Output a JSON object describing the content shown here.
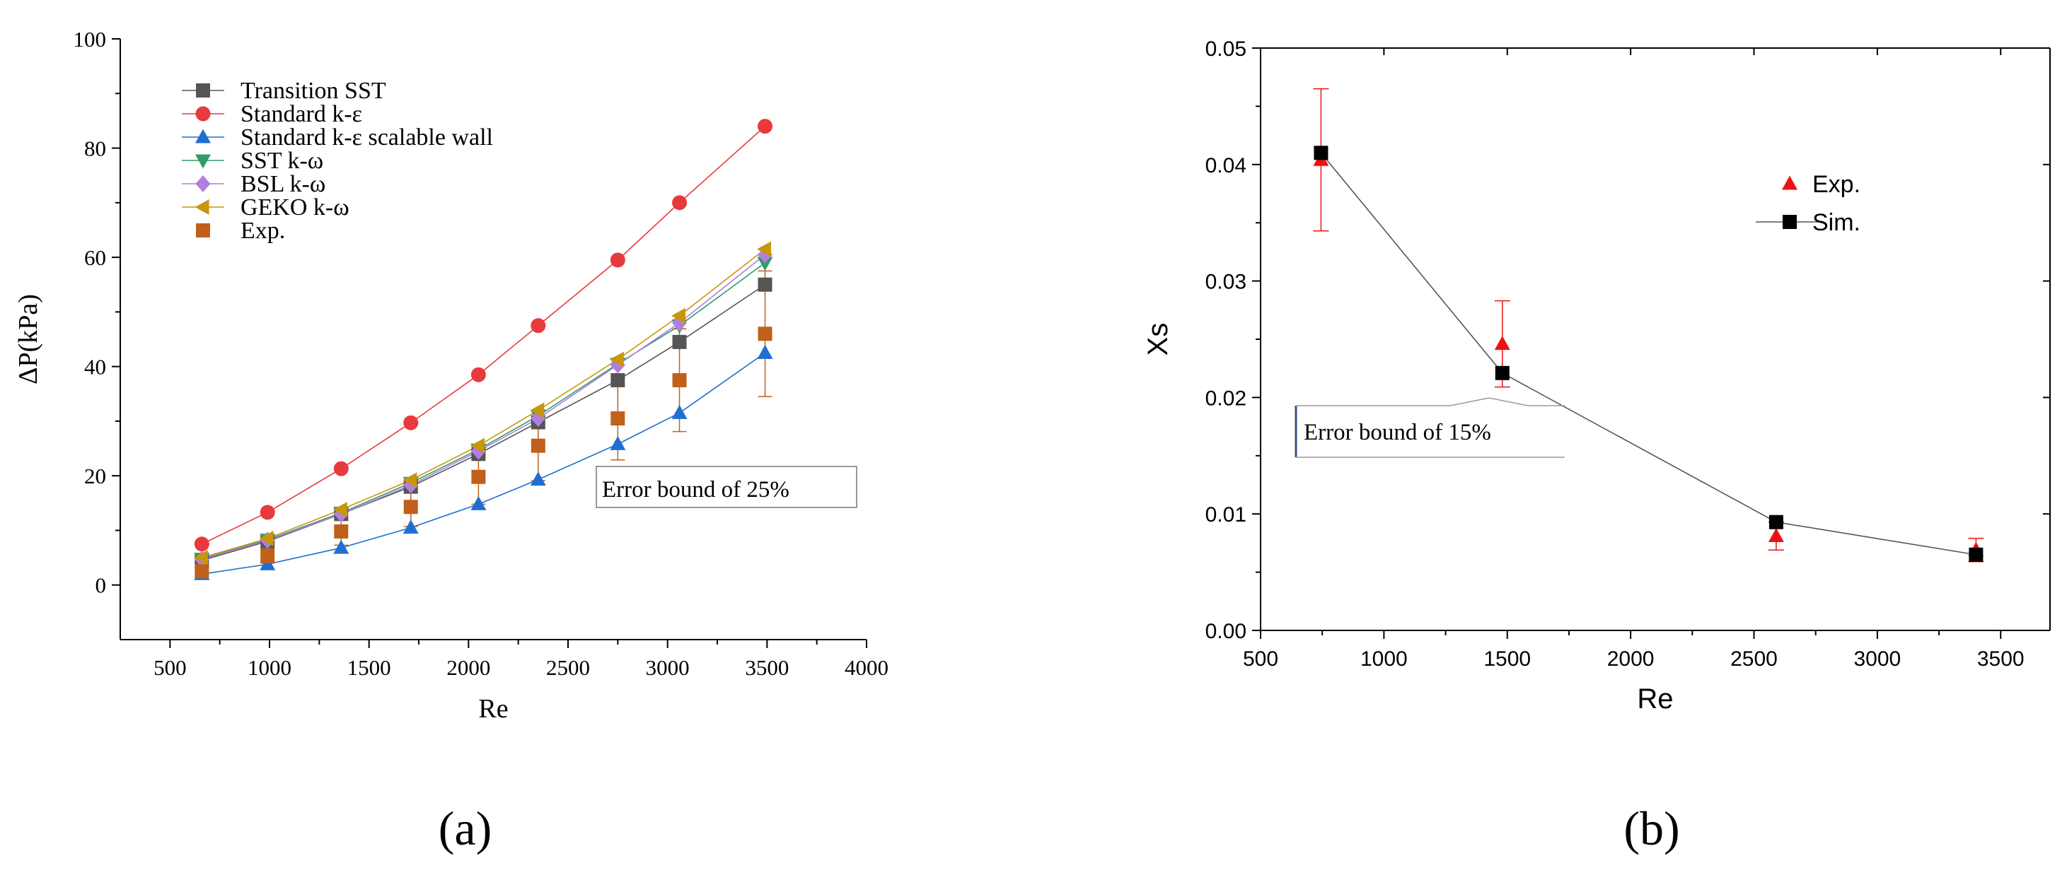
{
  "chart_data": [
    {
      "type": "line",
      "panel_label": "(a)",
      "xlabel": "Re",
      "ylabel": "ΔP(kPa)",
      "xlim": [
        250,
        4000
      ],
      "ylim": [
        -10,
        100
      ],
      "xticks": [
        500,
        1000,
        1500,
        2000,
        2500,
        3000,
        3500,
        4000
      ],
      "yticks": [
        0,
        20,
        40,
        60,
        80,
        100
      ],
      "legend_position": "top-left",
      "grid": false,
      "annotation": "Error bound of 25%",
      "x": [
        660,
        990,
        1360,
        1710,
        2050,
        2350,
        2750,
        3060,
        3490
      ],
      "series": [
        {
          "name": "Transition SST",
          "marker": "square",
          "color": "#555555",
          "values": [
            4.5,
            8.0,
            13.0,
            18.0,
            24.0,
            29.8,
            37.5,
            44.5,
            55.0
          ]
        },
        {
          "name": "Standard k-ε",
          "marker": "circle",
          "color": "#e8393c",
          "values": [
            7.5,
            13.3,
            21.3,
            29.7,
            38.5,
            47.5,
            59.5,
            70.0,
            84.0
          ]
        },
        {
          "name": "Standard k-ε scalable wall",
          "marker": "triangle-up",
          "color": "#1f6fd1",
          "values": [
            2.0,
            3.8,
            6.8,
            10.5,
            14.8,
            19.3,
            25.8,
            31.5,
            42.5
          ]
        },
        {
          "name": "SST k-ω",
          "marker": "triangle-down",
          "color": "#2f9c6a",
          "values": [
            4.8,
            8.3,
            13.2,
            18.7,
            24.8,
            31.0,
            40.5,
            47.5,
            59.0
          ]
        },
        {
          "name": "BSL k-ω",
          "marker": "diamond",
          "color": "#b07fe0",
          "values": [
            4.7,
            8.2,
            13.0,
            18.3,
            24.5,
            30.5,
            40.3,
            48.0,
            60.5
          ]
        },
        {
          "name": "GEKO k-ω",
          "marker": "triangle-left",
          "color": "#c8960a",
          "values": [
            5.0,
            8.5,
            13.8,
            19.2,
            25.5,
            32.0,
            41.3,
            49.3,
            61.5
          ]
        },
        {
          "name": "Exp.",
          "marker": "square",
          "color": "#c0601a",
          "line": false,
          "values": [
            2.5,
            5.3,
            9.8,
            14.3,
            19.8,
            25.5,
            30.5,
            37.5,
            46.0
          ],
          "error": [
            0.6,
            1.3,
            2.5,
            3.6,
            5.0,
            6.4,
            7.6,
            9.4,
            11.5
          ]
        }
      ]
    },
    {
      "type": "scatter",
      "panel_label": "(b)",
      "xlabel": "Re",
      "ylabel": "Xs",
      "xlim": [
        500,
        3700
      ],
      "ylim": [
        0.0,
        0.05
      ],
      "xticks": [
        500,
        1000,
        1500,
        2000,
        2500,
        3000,
        3500
      ],
      "yticks": [
        "0.00",
        "0.01",
        "0.02",
        "0.03",
        "0.04",
        "0.05"
      ],
      "legend_position": "right",
      "grid": false,
      "annotation": "Error bound of 15%",
      "series": [
        {
          "name": "Exp.",
          "marker": "triangle-up",
          "color": "#ee1111",
          "line": false,
          "x": [
            745,
            1480,
            2590,
            3400
          ],
          "values": [
            0.0404,
            0.0246,
            0.0081,
            0.0069
          ],
          "error": [
            0.0061,
            0.0037,
            0.0012,
            0.001
          ]
        },
        {
          "name": "Sim.",
          "marker": "square",
          "color": "#000000",
          "line": true,
          "x": [
            745,
            1480,
            2590,
            3400
          ],
          "values": [
            0.041,
            0.0221,
            0.0093,
            0.0065
          ]
        }
      ]
    }
  ]
}
